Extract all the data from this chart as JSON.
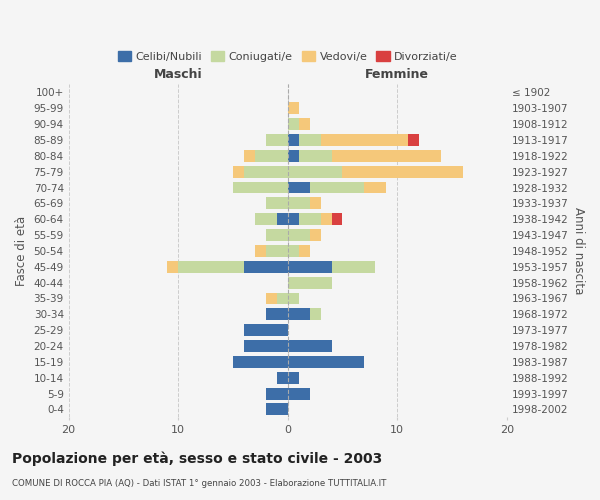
{
  "age_groups": [
    "0-4",
    "5-9",
    "10-14",
    "15-19",
    "20-24",
    "25-29",
    "30-34",
    "35-39",
    "40-44",
    "45-49",
    "50-54",
    "55-59",
    "60-64",
    "65-69",
    "70-74",
    "75-79",
    "80-84",
    "85-89",
    "90-94",
    "95-99",
    "100+"
  ],
  "birth_years": [
    "1998-2002",
    "1993-1997",
    "1988-1992",
    "1983-1987",
    "1978-1982",
    "1973-1977",
    "1968-1972",
    "1963-1967",
    "1958-1962",
    "1953-1957",
    "1948-1952",
    "1943-1947",
    "1938-1942",
    "1933-1937",
    "1928-1932",
    "1923-1927",
    "1918-1922",
    "1913-1917",
    "1908-1912",
    "1903-1907",
    "≤ 1902"
  ],
  "male": {
    "celibi": [
      2,
      2,
      1,
      5,
      4,
      4,
      2,
      0,
      0,
      4,
      0,
      0,
      1,
      0,
      0,
      0,
      0,
      0,
      0,
      0,
      0
    ],
    "coniugati": [
      0,
      0,
      0,
      0,
      0,
      0,
      0,
      1,
      0,
      6,
      2,
      2,
      2,
      2,
      5,
      4,
      3,
      2,
      0,
      0,
      0
    ],
    "vedovi": [
      0,
      0,
      0,
      0,
      0,
      0,
      0,
      1,
      0,
      1,
      1,
      0,
      0,
      0,
      0,
      1,
      1,
      0,
      0,
      0,
      0
    ],
    "divorziati": [
      0,
      0,
      0,
      0,
      0,
      0,
      0,
      0,
      0,
      0,
      0,
      0,
      0,
      0,
      0,
      0,
      0,
      0,
      0,
      0,
      0
    ]
  },
  "female": {
    "nubili": [
      0,
      2,
      1,
      7,
      4,
      0,
      2,
      0,
      0,
      4,
      0,
      0,
      1,
      0,
      2,
      0,
      1,
      1,
      0,
      0,
      0
    ],
    "coniugate": [
      0,
      0,
      0,
      0,
      0,
      0,
      1,
      1,
      4,
      4,
      1,
      2,
      2,
      2,
      5,
      5,
      3,
      2,
      1,
      0,
      0
    ],
    "vedove": [
      0,
      0,
      0,
      0,
      0,
      0,
      0,
      0,
      0,
      0,
      1,
      1,
      1,
      1,
      2,
      11,
      10,
      8,
      1,
      1,
      0
    ],
    "divorziate": [
      0,
      0,
      0,
      0,
      0,
      0,
      0,
      0,
      0,
      0,
      0,
      0,
      1,
      0,
      0,
      0,
      0,
      1,
      0,
      0,
      0
    ]
  },
  "colors": {
    "celibi_nubili": "#3d6ea8",
    "coniugati": "#c5d9a0",
    "vedovi": "#f5c87a",
    "divorziati": "#d94040"
  },
  "xlim": 20,
  "title": "Popolazione per età, sesso e stato civile - 2003",
  "subtitle": "COMUNE DI ROCCA PIA (AQ) - Dati ISTAT 1° gennaio 2003 - Elaborazione TUTTITALIA.IT",
  "ylabel_left": "Fasce di età",
  "ylabel_right": "Anni di nascita",
  "xlabel_left": "Maschi",
  "xlabel_right": "Femmine",
  "legend_labels": [
    "Celibi/Nubili",
    "Coniugati/e",
    "Vedovi/e",
    "Divorziati/e"
  ],
  "bg_color": "#f5f5f5"
}
